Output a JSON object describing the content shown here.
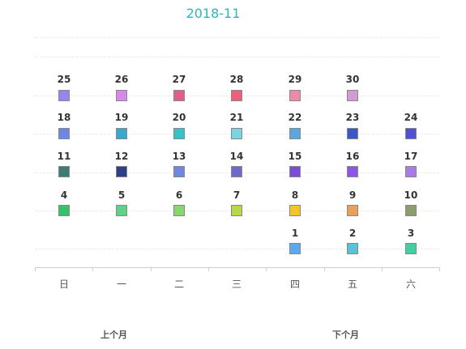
{
  "calendar": {
    "title": "2018-11",
    "weekdays": [
      "日",
      "一",
      "二",
      "三",
      "四",
      "五",
      "六"
    ],
    "days": [
      {
        "day": "1",
        "color": "#5aa8f0"
      },
      {
        "day": "2",
        "color": "#56c3db"
      },
      {
        "day": "3",
        "color": "#3ecfa3"
      },
      {
        "day": "4",
        "color": "#36c267"
      },
      {
        "day": "5",
        "color": "#61d189"
      },
      {
        "day": "6",
        "color": "#87d86c"
      },
      {
        "day": "7",
        "color": "#b4d84a"
      },
      {
        "day": "8",
        "color": "#f5c42a"
      },
      {
        "day": "9",
        "color": "#e8a05a"
      },
      {
        "day": "10",
        "color": "#8a9d6b"
      },
      {
        "day": "11",
        "color": "#3f7b72"
      },
      {
        "day": "12",
        "color": "#2e3f8a"
      },
      {
        "day": "13",
        "color": "#6f87dd"
      },
      {
        "day": "14",
        "color": "#7069c9"
      },
      {
        "day": "15",
        "color": "#7a4fd6"
      },
      {
        "day": "16",
        "color": "#8e55e8"
      },
      {
        "day": "17",
        "color": "#a97ae8"
      },
      {
        "day": "18",
        "color": "#6e86e5"
      },
      {
        "day": "19",
        "color": "#38a8cf"
      },
      {
        "day": "20",
        "color": "#33c4c9"
      },
      {
        "day": "21",
        "color": "#79d6e0"
      },
      {
        "day": "22",
        "color": "#5aa6dd"
      },
      {
        "day": "23",
        "color": "#3c55cc"
      },
      {
        "day": "24",
        "color": "#4f4fd8"
      },
      {
        "day": "25",
        "color": "#9088f0"
      },
      {
        "day": "26",
        "color": "#d987e8"
      },
      {
        "day": "27",
        "color": "#e35d8a"
      },
      {
        "day": "28",
        "color": "#ee5f7c"
      },
      {
        "day": "29",
        "color": "#ef8aa6"
      },
      {
        "day": "30",
        "color": "#d49ad6"
      }
    ]
  },
  "navigation": {
    "prev_label": "上个月",
    "next_label": "下个月"
  }
}
